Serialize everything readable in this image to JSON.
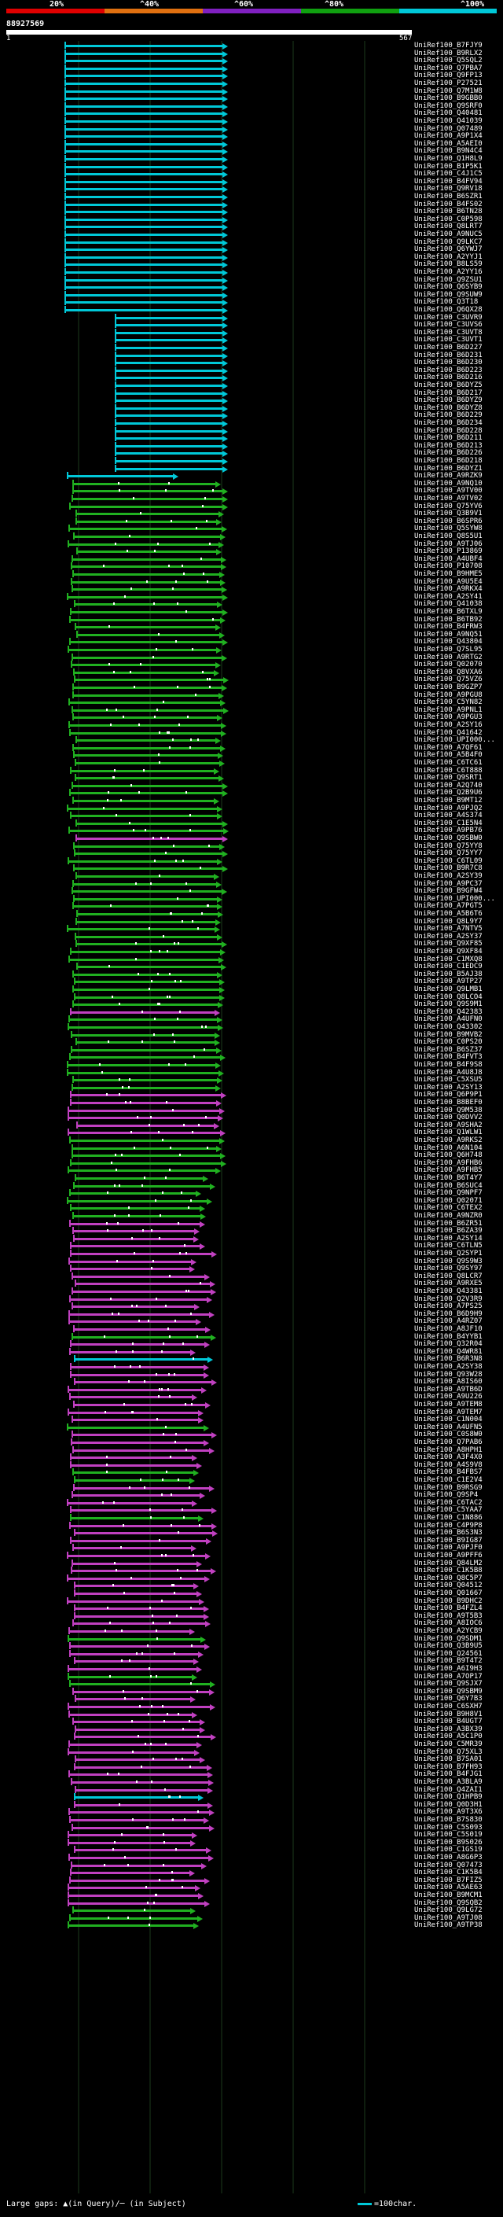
{
  "legend": {
    "labels": [
      "20%",
      "^40%",
      "^60%",
      "^80%",
      "^100%"
    ],
    "colors": [
      "#e00000",
      "#e07010",
      "#8020c0",
      "#10a010",
      "#00c8d8"
    ]
  },
  "query": {
    "id": "88927569",
    "start": "1",
    "end": "567"
  },
  "footer": {
    "gaps_text": "Large gaps: ▲(in Query)/─ (in Subject)",
    "scale_text": "=100char."
  },
  "hits": [
    {
      "label": "UniRef100_B7FJY9",
      "color": "cyan"
    },
    {
      "label": "UniRef100_B9RLX2",
      "color": "cyan"
    },
    {
      "label": "UniRef100_Q5SQL2",
      "color": "cyan"
    },
    {
      "label": "UniRef100_Q7PBA7",
      "color": "cyan"
    },
    {
      "label": "UniRef100_Q9FP13",
      "color": "cyan"
    },
    {
      "label": "UniRef100_P27521",
      "color": "cyan"
    },
    {
      "label": "UniRef100_Q7M1W8",
      "color": "cyan"
    },
    {
      "label": "UniRef100_B9GBB0",
      "color": "cyan"
    },
    {
      "label": "UniRef100_Q9SRF0",
      "color": "cyan"
    },
    {
      "label": "UniRef100_Q40481",
      "color": "cyan"
    },
    {
      "label": "UniRef100_Q41039",
      "color": "cyan"
    },
    {
      "label": "UniRef100_Q07489",
      "color": "cyan"
    },
    {
      "label": "UniRef100_A9P1X4",
      "color": "cyan"
    },
    {
      "label": "UniRef100_A5AEI0",
      "color": "cyan"
    },
    {
      "label": "UniRef100_B9N4C4",
      "color": "cyan"
    },
    {
      "label": "UniRef100_Q1H8L9",
      "color": "cyan"
    },
    {
      "label": "UniRef100_B1P5K1",
      "color": "cyan"
    },
    {
      "label": "UniRef100_C4J1C5",
      "color": "cyan"
    },
    {
      "label": "UniRef100_B4FV94",
      "color": "cyan"
    },
    {
      "label": "UniRef100_Q9RV18",
      "color": "cyan"
    },
    {
      "label": "UniRef100_B6SZR1",
      "color": "cyan"
    },
    {
      "label": "UniRef100_B4FS02",
      "color": "cyan"
    },
    {
      "label": "UniRef100_B6TN28",
      "color": "cyan"
    },
    {
      "label": "UniRef100_C0P598",
      "color": "cyan"
    },
    {
      "label": "UniRef100_Q8LRT7",
      "color": "cyan"
    },
    {
      "label": "UniRef100_A9NUC5",
      "color": "cyan"
    },
    {
      "label": "UniRef100_Q9LKC7",
      "color": "cyan"
    },
    {
      "label": "UniRef100_Q6YWJ7",
      "color": "cyan"
    },
    {
      "label": "UniRef100_A2YYJ1",
      "color": "cyan"
    },
    {
      "label": "UniRef100_B8LS59",
      "color": "cyan"
    },
    {
      "label": "UniRef100_A2YY16",
      "color": "cyan"
    },
    {
      "label": "UniRef100_Q9ZSU1",
      "color": "cyan"
    },
    {
      "label": "UniRef100_Q6SYB9",
      "color": "cyan"
    },
    {
      "label": "UniRef100_Q9SUW9",
      "color": "cyan"
    },
    {
      "label": "UniRef100_Q3T18",
      "color": "cyan"
    },
    {
      "label": "UniRef100_Q6QX28",
      "color": "cyan"
    },
    {
      "label": "UniRef100_C3UVR9",
      "color": "cyan"
    },
    {
      "label": "UniRef100_C3UVS6",
      "color": "cyan"
    },
    {
      "label": "UniRef100_C3UVT8",
      "color": "cyan"
    },
    {
      "label": "UniRef100_C3UVT1",
      "color": "cyan"
    },
    {
      "label": "UniRef100_B6D227",
      "color": "cyan"
    },
    {
      "label": "UniRef100_B6D231",
      "color": "cyan"
    },
    {
      "label": "UniRef100_B6D230",
      "color": "cyan"
    },
    {
      "label": "UniRef100_B6D223",
      "color": "cyan"
    },
    {
      "label": "UniRef100_B6D216",
      "color": "cyan"
    },
    {
      "label": "UniRef100_B6DYZ5",
      "color": "cyan"
    },
    {
      "label": "UniRef100_B6D217",
      "color": "cyan"
    },
    {
      "label": "UniRef100_B6DYZ9",
      "color": "cyan"
    },
    {
      "label": "UniRef100_B6DYZ8",
      "color": "cyan"
    },
    {
      "label": "UniRef100_B6D229",
      "color": "cyan"
    },
    {
      "label": "UniRef100_B6D234",
      "color": "cyan"
    },
    {
      "label": "UniRef100_B6D228",
      "color": "cyan"
    },
    {
      "label": "UniRef100_B6D211",
      "color": "cyan"
    },
    {
      "label": "UniRef100_B6D213",
      "color": "cyan"
    },
    {
      "label": "UniRef100_B6D226",
      "color": "cyan"
    },
    {
      "label": "UniRef100_B6D218",
      "color": "cyan"
    },
    {
      "label": "UniRef100_B6DYZ1",
      "color": "cyan"
    },
    {
      "label": "UniRef100_A9RZK9",
      "color": "cyan"
    },
    {
      "label": "UniRef100_A9NQ10",
      "color": "green"
    },
    {
      "label": "UniRef100_A9TV00",
      "color": "green"
    },
    {
      "label": "UniRef100_A9TV02",
      "color": "green"
    },
    {
      "label": "UniRef100_Q75YV6",
      "color": "green"
    },
    {
      "label": "UniRef100_Q3B9V1",
      "color": "green"
    },
    {
      "label": "UniRef100_B6SPR6",
      "color": "green"
    },
    {
      "label": "UniRef100_Q5SYW8",
      "color": "green"
    },
    {
      "label": "UniRef100_Q8S5U1",
      "color": "green"
    },
    {
      "label": "UniRef100_A9TJ06",
      "color": "green"
    },
    {
      "label": "UniRef100_P13869",
      "color": "green"
    },
    {
      "label": "UniRef100_A4UBF4",
      "color": "green"
    },
    {
      "label": "UniRef100_P10708",
      "color": "green"
    },
    {
      "label": "UniRef100_B9HME5",
      "color": "green"
    },
    {
      "label": "UniRef100_A9U5E4",
      "color": "green"
    },
    {
      "label": "UniRef100_A9RKX4",
      "color": "green"
    },
    {
      "label": "UniRef100_A2SY41",
      "color": "green"
    },
    {
      "label": "UniRef100_Q41038",
      "color": "green"
    },
    {
      "label": "UniRef100_B6TXL9",
      "color": "green"
    },
    {
      "label": "UniRef100_B6TB92",
      "color": "green"
    },
    {
      "label": "UniRef100_B4FRW3",
      "color": "green"
    },
    {
      "label": "UniRef100_A9NQ51",
      "color": "green"
    },
    {
      "label": "UniRef100_Q43804",
      "color": "green"
    },
    {
      "label": "UniRef100_Q7SL95",
      "color": "green"
    },
    {
      "label": "UniRef100_A9RTG2",
      "color": "green"
    },
    {
      "label": "UniRef100_Q02070",
      "color": "green"
    },
    {
      "label": "UniRef100_Q8VXA6",
      "color": "green"
    },
    {
      "label": "UniRef100_Q75VZ6",
      "color": "green"
    },
    {
      "label": "UniRef100_B9GZP7",
      "color": "green"
    },
    {
      "label": "UniRef100_A9PGU8",
      "color": "green"
    },
    {
      "label": "UniRef100_C5YN82",
      "color": "green"
    },
    {
      "label": "UniRef100_A9PNL1",
      "color": "green"
    },
    {
      "label": "UniRef100_A9PGU3",
      "color": "green"
    },
    {
      "label": "UniRef100_A2SY16",
      "color": "green"
    },
    {
      "label": "UniRef100_Q41642",
      "color": "green"
    },
    {
      "label": "UniRef100_UPI000...",
      "color": "green"
    },
    {
      "label": "UniRef100_A7QF61",
      "color": "green"
    },
    {
      "label": "UniRef100_A5B4F0",
      "color": "green"
    },
    {
      "label": "UniRef100_C6TC61",
      "color": "green"
    },
    {
      "label": "UniRef100_C6T888",
      "color": "green"
    },
    {
      "label": "UniRef100_Q9SRT1",
      "color": "green"
    },
    {
      "label": "UniRef100_A2Q740",
      "color": "green"
    },
    {
      "label": "UniRef100_Q2B9U6",
      "color": "green"
    },
    {
      "label": "UniRef100_B9MT12",
      "color": "green"
    },
    {
      "label": "UniRef100_A9PJQ2",
      "color": "green"
    },
    {
      "label": "UniRef100_A4S374",
      "color": "green"
    },
    {
      "label": "UniRef100_C1E5N4",
      "color": "green"
    },
    {
      "label": "UniRef100_A9PB76",
      "color": "green"
    },
    {
      "label": "UniRef100_Q9SBW0",
      "color": "magenta"
    },
    {
      "label": "UniRef100_Q75YY8",
      "color": "green"
    },
    {
      "label": "UniRef100_Q75YY7",
      "color": "green"
    },
    {
      "label": "UniRef100_C6TL09",
      "color": "green"
    },
    {
      "label": "UniRef100_B9R7C8",
      "color": "green"
    },
    {
      "label": "UniRef100_A2SY39",
      "color": "green"
    },
    {
      "label": "UniRef100_A9PC37",
      "color": "green"
    },
    {
      "label": "UniRef100_B9GFW4",
      "color": "green"
    },
    {
      "label": "UniRef100_UPI000...",
      "color": "green"
    },
    {
      "label": "UniRef100_A7PGT5",
      "color": "green"
    },
    {
      "label": "UniRef100_A5B6T6",
      "color": "green"
    },
    {
      "label": "UniRef100_Q8L9Y7",
      "color": "green"
    },
    {
      "label": "UniRef100_A7NTV5",
      "color": "green"
    },
    {
      "label": "UniRef100_A2SY37",
      "color": "green"
    },
    {
      "label": "UniRef100_Q9XF85",
      "color": "green"
    },
    {
      "label": "UniRef100_Q9XF84",
      "color": "green"
    },
    {
      "label": "UniRef100_C1MXQ8",
      "color": "green"
    },
    {
      "label": "UniRef100_C1EDC9",
      "color": "green"
    },
    {
      "label": "UniRef100_B5AJ38",
      "color": "green"
    },
    {
      "label": "UniRef100_A9TP27",
      "color": "green"
    },
    {
      "label": "UniRef100_Q9LMB1",
      "color": "green"
    },
    {
      "label": "UniRef100_Q8LCO4",
      "color": "green"
    },
    {
      "label": "UniRef100_Q9S9M1",
      "color": "green"
    },
    {
      "label": "UniRef100_Q42383",
      "color": "magenta"
    },
    {
      "label": "UniRef100_A4UFN0",
      "color": "green"
    },
    {
      "label": "UniRef100_Q43302",
      "color": "green"
    },
    {
      "label": "UniRef100_B9MVB2",
      "color": "green"
    },
    {
      "label": "UniRef100_C0PS20",
      "color": "green"
    },
    {
      "label": "UniRef100_B6SZ37",
      "color": "green"
    },
    {
      "label": "UniRef100_B4FVT3",
      "color": "green"
    },
    {
      "label": "UniRef100_B4F9S8",
      "color": "green"
    },
    {
      "label": "UniRef100_A4U8J8",
      "color": "green"
    },
    {
      "label": "UniRef100_C5XSU5",
      "color": "green"
    },
    {
      "label": "UniRef100_A2SY13",
      "color": "green"
    },
    {
      "label": "UniRef100_Q6P9P1",
      "color": "magenta"
    },
    {
      "label": "UniRef100_B8BEF0",
      "color": "magenta"
    },
    {
      "label": "UniRef100_Q9M538",
      "color": "magenta"
    },
    {
      "label": "UniRef100_Q0DVV2",
      "color": "magenta"
    },
    {
      "label": "UniRef100_A9SHA2",
      "color": "magenta"
    },
    {
      "label": "UniRef100_Q1WLW1",
      "color": "magenta"
    },
    {
      "label": "UniRef100_A9RKS2",
      "color": "green"
    },
    {
      "label": "UniRef100_A6N104",
      "color": "green"
    },
    {
      "label": "UniRef100_Q6H748",
      "color": "green"
    },
    {
      "label": "UniRef100_A9FHB6",
      "color": "green"
    },
    {
      "label": "UniRef100_A9FHB5",
      "color": "green"
    },
    {
      "label": "UniRef100_B6T4Y7",
      "color": "green"
    },
    {
      "label": "UniRef100_B6SUC4",
      "color": "green"
    },
    {
      "label": "UniRef100_Q9NPF7",
      "color": "green"
    },
    {
      "label": "UniRef100_Q02071",
      "color": "green"
    },
    {
      "label": "UniRef100_C6TEX2",
      "color": "green"
    },
    {
      "label": "UniRef100_A9NZR0",
      "color": "green"
    },
    {
      "label": "UniRef100_B6ZR51",
      "color": "magenta"
    },
    {
      "label": "UniRef100_B6ZA39",
      "color": "magenta"
    },
    {
      "label": "UniRef100_A2SY14",
      "color": "magenta"
    },
    {
      "label": "UniRef100_C6TLN5",
      "color": "magenta"
    },
    {
      "label": "UniRef100_Q2SYP1",
      "color": "magenta"
    },
    {
      "label": "UniRef100_Q9S9W3",
      "color": "magenta"
    },
    {
      "label": "UniRef100_Q9SY97",
      "color": "magenta"
    },
    {
      "label": "UniRef100_Q8LCR7",
      "color": "magenta"
    },
    {
      "label": "UniRef100_A9RXE5",
      "color": "magenta"
    },
    {
      "label": "UniRef100_Q43381",
      "color": "magenta"
    },
    {
      "label": "UniRef100_Q2V3R9",
      "color": "magenta"
    },
    {
      "label": "UniRef100_A7PS25",
      "color": "magenta"
    },
    {
      "label": "UniRef100_B6D9H9",
      "color": "magenta"
    },
    {
      "label": "UniRef100_A4RZ07",
      "color": "magenta"
    },
    {
      "label": "UniRef100_A8JF10",
      "color": "magenta"
    },
    {
      "label": "UniRef100_B4YYB1",
      "color": "green"
    },
    {
      "label": "UniRef100_Q32R04",
      "color": "magenta"
    },
    {
      "label": "UniRef100_Q4WR81",
      "color": "magenta"
    },
    {
      "label": "UniRef100_B6R3N8",
      "color": "cyan"
    },
    {
      "label": "UniRef100_A2SY38",
      "color": "magenta"
    },
    {
      "label": "UniRef100_Q93W28",
      "color": "magenta"
    },
    {
      "label": "UniRef100_A8IS60",
      "color": "magenta"
    },
    {
      "label": "UniRef100_A9TB6D",
      "color": "magenta"
    },
    {
      "label": "UniRef100_A9U226",
      "color": "magenta"
    },
    {
      "label": "UniRef100_A9TEM8",
      "color": "magenta"
    },
    {
      "label": "UniRef100_A9TEM7",
      "color": "magenta"
    },
    {
      "label": "UniRef100_C1N004",
      "color": "magenta"
    },
    {
      "label": "UniRef100_A4UFN5",
      "color": "green"
    },
    {
      "label": "UniRef100_C0S8W0",
      "color": "magenta"
    },
    {
      "label": "UniRef100_Q7PAB6",
      "color": "magenta"
    },
    {
      "label": "UniRef100_A8HPH1",
      "color": "magenta"
    },
    {
      "label": "UniRef100_A3F4X0",
      "color": "magenta"
    },
    {
      "label": "UniRef100_A4S9V8",
      "color": "magenta"
    },
    {
      "label": "UniRef100_B4FBS7",
      "color": "green"
    },
    {
      "label": "UniRef100_C1E2V4",
      "color": "green"
    },
    {
      "label": "UniRef100_B9RSG9",
      "color": "magenta"
    },
    {
      "label": "UniRef100_Q9SP4",
      "color": "magenta"
    },
    {
      "label": "UniRef100_C6TAC2",
      "color": "magenta"
    },
    {
      "label": "UniRef100_C5YAA7",
      "color": "magenta"
    },
    {
      "label": "UniRef100_C1N886",
      "color": "green"
    },
    {
      "label": "UniRef100_C4P9P8",
      "color": "magenta"
    },
    {
      "label": "UniRef100_B6S3N3",
      "color": "magenta"
    },
    {
      "label": "UniRef100_B9IG87",
      "color": "magenta"
    },
    {
      "label": "UniRef100_A9PJF0",
      "color": "magenta"
    },
    {
      "label": "UniRef100_A9PFF6",
      "color": "magenta"
    },
    {
      "label": "UniRef100_Q84LM2",
      "color": "magenta"
    },
    {
      "label": "UniRef100_C1K5B8",
      "color": "magenta"
    },
    {
      "label": "UniRef100_Q8C5P7",
      "color": "magenta"
    },
    {
      "label": "UniRef100_Q04512",
      "color": "magenta"
    },
    {
      "label": "UniRef100_Q01667",
      "color": "magenta"
    },
    {
      "label": "UniRef100_B9DHC2",
      "color": "magenta"
    },
    {
      "label": "UniRef100_B4FZL4",
      "color": "magenta"
    },
    {
      "label": "UniRef100_A9T5B3",
      "color": "magenta"
    },
    {
      "label": "UniRef100_A8IOC6",
      "color": "magenta"
    },
    {
      "label": "UniRef100_A2YCB9",
      "color": "magenta"
    },
    {
      "label": "UniRef100_Q9SDM1",
      "color": "green"
    },
    {
      "label": "UniRef100_Q3B9U5",
      "color": "magenta"
    },
    {
      "label": "UniRef100_Q24561",
      "color": "magenta"
    },
    {
      "label": "UniRef100_B9T4T2",
      "color": "magenta"
    },
    {
      "label": "UniRef100_A6I9H3",
      "color": "magenta"
    },
    {
      "label": "UniRef100_A7OP17",
      "color": "green"
    },
    {
      "label": "UniRef100_Q9SJX7",
      "color": "green"
    },
    {
      "label": "UniRef100_Q9SBM9",
      "color": "magenta"
    },
    {
      "label": "UniRef100_Q6Y7B3",
      "color": "magenta"
    },
    {
      "label": "UniRef100_C6SXH7",
      "color": "magenta"
    },
    {
      "label": "UniRef100_B9H8V1",
      "color": "magenta"
    },
    {
      "label": "UniRef100_B4UGT7",
      "color": "magenta"
    },
    {
      "label": "UniRef100_A3BX39",
      "color": "magenta"
    },
    {
      "label": "UniRef100_A5C1P0",
      "color": "magenta"
    },
    {
      "label": "UniRef100_C5MR39",
      "color": "magenta"
    },
    {
      "label": "UniRef100_Q75XL3",
      "color": "magenta"
    },
    {
      "label": "UniRef100_B7SA01",
      "color": "magenta"
    },
    {
      "label": "UniRef100_B7FH93",
      "color": "magenta"
    },
    {
      "label": "UniRef100_B4FJG1",
      "color": "magenta"
    },
    {
      "label": "UniRef100_A3BLA9",
      "color": "magenta"
    },
    {
      "label": "UniRef100_Q4ZAI1",
      "color": "magenta"
    },
    {
      "label": "UniRef100_Q1HPB9",
      "color": "cyan"
    },
    {
      "label": "UniRef100_Q0D3H1",
      "color": "magenta"
    },
    {
      "label": "UniRef100_A9T3X6",
      "color": "magenta"
    },
    {
      "label": "UniRef100_B7S830",
      "color": "magenta"
    },
    {
      "label": "UniRef100_C5S093",
      "color": "magenta"
    },
    {
      "label": "UniRef100_C5S019",
      "color": "magenta"
    },
    {
      "label": "UniRef100_B9S026",
      "color": "magenta"
    },
    {
      "label": "UniRef100_C1GS19",
      "color": "magenta"
    },
    {
      "label": "UniRef100_A8G6P3",
      "color": "magenta"
    },
    {
      "label": "UniRef100_Q07473",
      "color": "magenta"
    },
    {
      "label": "UniRef100_C1K5B4",
      "color": "magenta"
    },
    {
      "label": "UniRef100_B7FIZ5",
      "color": "magenta"
    },
    {
      "label": "UniRef100_A5AE63",
      "color": "magenta"
    },
    {
      "label": "UniRef100_B9MCM1",
      "color": "magenta"
    },
    {
      "label": "UniRef100_Q9SQB2",
      "color": "magenta"
    },
    {
      "label": "UniRef100_Q9LG72",
      "color": "green"
    },
    {
      "label": "UniRef100_A9TJ08",
      "color": "green"
    },
    {
      "label": "UniRef100_A9TP38",
      "color": "green"
    }
  ]
}
